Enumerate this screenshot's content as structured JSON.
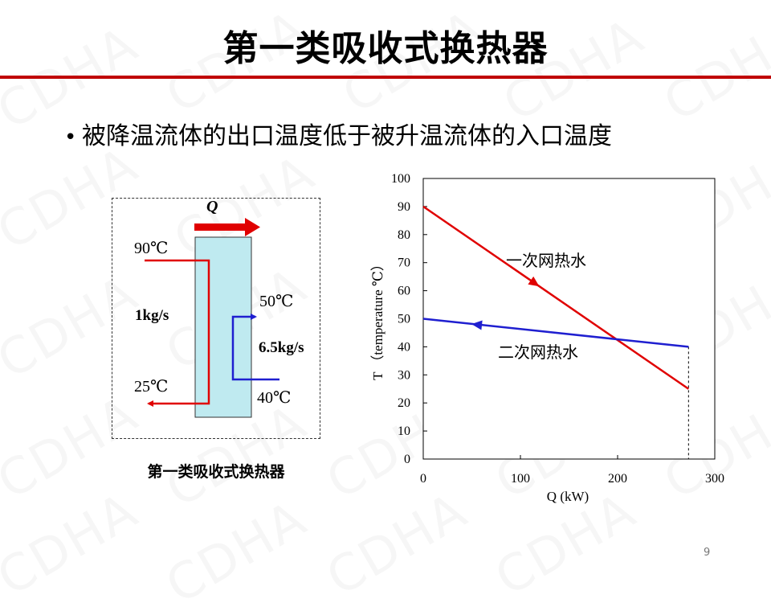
{
  "watermark": {
    "text": "CDHA"
  },
  "slide": {
    "title": "第一类吸收式换热器",
    "bullet": "被降温流体的出口温度低于被升温流体的入口温度",
    "page_number": "9"
  },
  "diagram": {
    "heat_label": "Q",
    "hot_in_temp": "90℃",
    "hot_out_temp": "25℃",
    "hot_flow": "1kg/s",
    "cold_out_temp": "50℃",
    "cold_in_temp": "40℃",
    "cold_flow": "6.5kg/s",
    "caption": "第一类吸收式换热器",
    "colors": {
      "hot": "#e00000",
      "cold": "#1f1fd0",
      "exchanger_fill": "#bfeaf0"
    }
  },
  "chart_data": {
    "type": "line",
    "xlabel": "Q (kW)",
    "ylabel": "T （temperature ℃）",
    "xlim": [
      0,
      300
    ],
    "ylim": [
      0,
      100
    ],
    "x_ticks": [
      "0",
      "100",
      "200",
      "300"
    ],
    "y_ticks": [
      "0",
      "10",
      "20",
      "30",
      "40",
      "50",
      "60",
      "70",
      "80",
      "90",
      "100"
    ],
    "grid": false,
    "series": [
      {
        "name": "一次网热水",
        "color": "#e00000",
        "x": [
          0,
          273
        ],
        "y": [
          90,
          25
        ],
        "arrow_at": [
          115,
          62.6
        ]
      },
      {
        "name": "二次网热水",
        "color": "#1f1fd0",
        "x": [
          0,
          273
        ],
        "y": [
          50,
          40
        ],
        "arrow_at": [
          55,
          47.9
        ]
      }
    ],
    "guide_line": {
      "x": 273,
      "from_y": 40,
      "to_y": 0
    }
  }
}
